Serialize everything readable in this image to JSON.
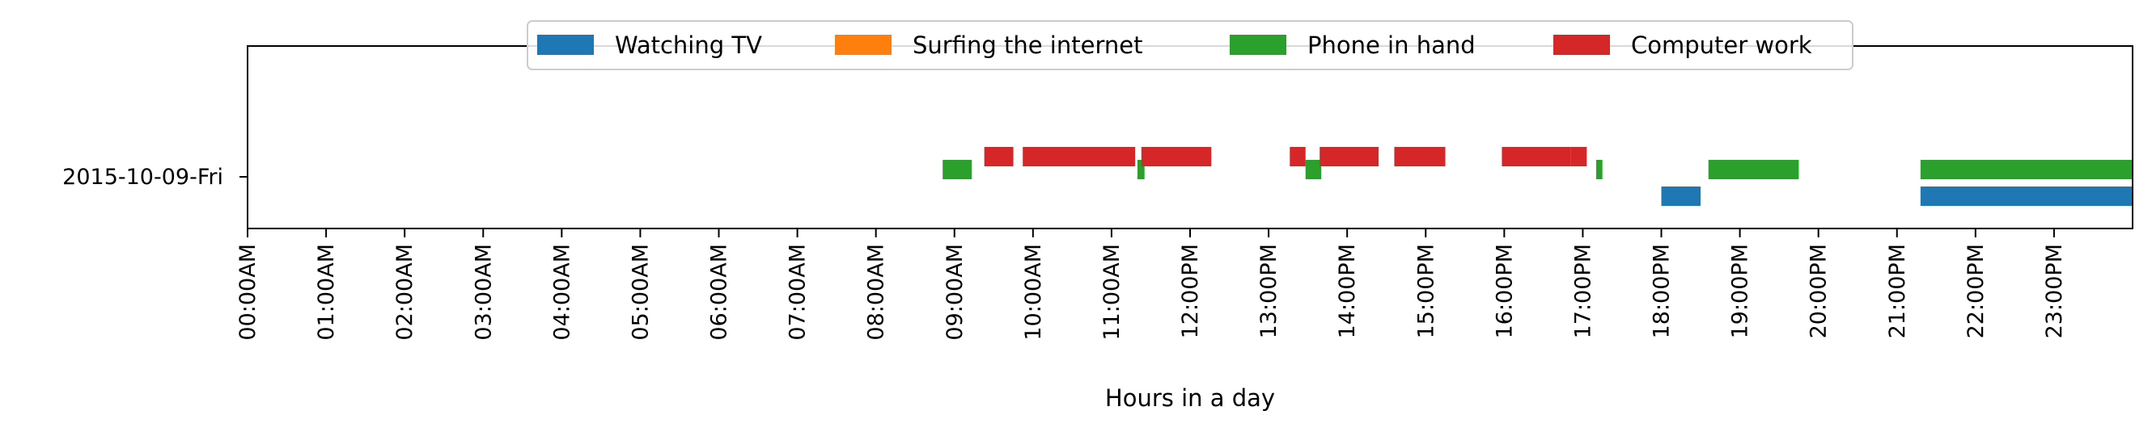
{
  "chart_data": {
    "type": "timeline",
    "title": "",
    "xlabel": "Hours in a day",
    "ylabel": "",
    "xlim": [
      0,
      24
    ],
    "y_category": "2015-10-09-Fri",
    "x_tick_labels": [
      "00:00AM",
      "01:00AM",
      "02:00AM",
      "03:00AM",
      "04:00AM",
      "05:00AM",
      "06:00AM",
      "07:00AM",
      "08:00AM",
      "09:00AM",
      "10:00AM",
      "11:00AM",
      "12:00PM",
      "13:00PM",
      "14:00PM",
      "15:00PM",
      "16:00PM",
      "17:00PM",
      "18:00PM",
      "19:00PM",
      "20:00PM",
      "21:00PM",
      "22:00PM",
      "23:00PM"
    ],
    "legend_position": "top-center",
    "grid": false,
    "series": [
      {
        "name": "Watching TV",
        "color": "#1f77b4",
        "lane": -1,
        "intervals": [
          [
            18.0,
            18.5
          ],
          [
            21.3,
            24.0
          ]
        ]
      },
      {
        "name": "Surfing the internet",
        "color": "#ff7f0e",
        "lane": 0,
        "intervals": []
      },
      {
        "name": "Phone in hand",
        "color": "#2ca02c",
        "lane": 0,
        "intervals": [
          [
            8.85,
            9.22
          ],
          [
            11.33,
            11.42
          ],
          [
            13.47,
            13.67
          ],
          [
            17.17,
            17.25
          ],
          [
            18.6,
            19.75
          ],
          [
            21.3,
            24.0
          ]
        ]
      },
      {
        "name": "Computer work",
        "color": "#d62728",
        "lane": 1,
        "intervals": [
          [
            9.38,
            9.75
          ],
          [
            9.87,
            11.3
          ],
          [
            11.38,
            12.27
          ],
          [
            13.27,
            13.47
          ],
          [
            13.65,
            14.4
          ],
          [
            14.6,
            15.25
          ],
          [
            15.97,
            16.85
          ],
          [
            16.85,
            17.05
          ]
        ]
      }
    ]
  }
}
